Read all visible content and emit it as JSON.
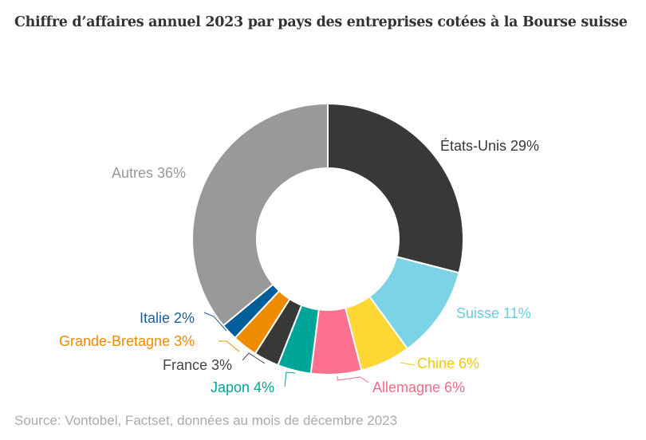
{
  "chart_data": {
    "type": "pie",
    "donut": true,
    "title": "Chiffre d’affaires annuel 2023 par pays des entreprises cotées à la Bourse suisse",
    "source": "Source: Vontobel, Factset, données au mois de décembre 2023",
    "slices": [
      {
        "label": "États-Unis 29%",
        "value": 29,
        "color": "#383937",
        "text_color": "#383937"
      },
      {
        "label": "Suisse 11%",
        "value": 11,
        "color": "#7dd3e6",
        "text_color": "#6ccbe2"
      },
      {
        "label": "Chine 6%",
        "value": 6,
        "color": "#fdd835",
        "text_color": "#f5c800"
      },
      {
        "label": "Allemagne 6%",
        "value": 6,
        "color": "#fc7190",
        "text_color": "#f46a8a"
      },
      {
        "label": "Japon 4%",
        "value": 4,
        "color": "#00a599",
        "text_color": "#00a599"
      },
      {
        "label": "France 3%",
        "value": 3,
        "color": "#383937",
        "text_color": "#444444"
      },
      {
        "label": "Grande-Bretagne 3%",
        "value": 3,
        "color": "#ee8b00",
        "text_color": "#ee8b00"
      },
      {
        "label": "Italie 2%",
        "value": 2,
        "color": "#005f99",
        "text_color": "#1a5f99"
      },
      {
        "label": "Autres 36%",
        "value": 36,
        "color": "#999999",
        "text_color": "#999999"
      }
    ]
  }
}
